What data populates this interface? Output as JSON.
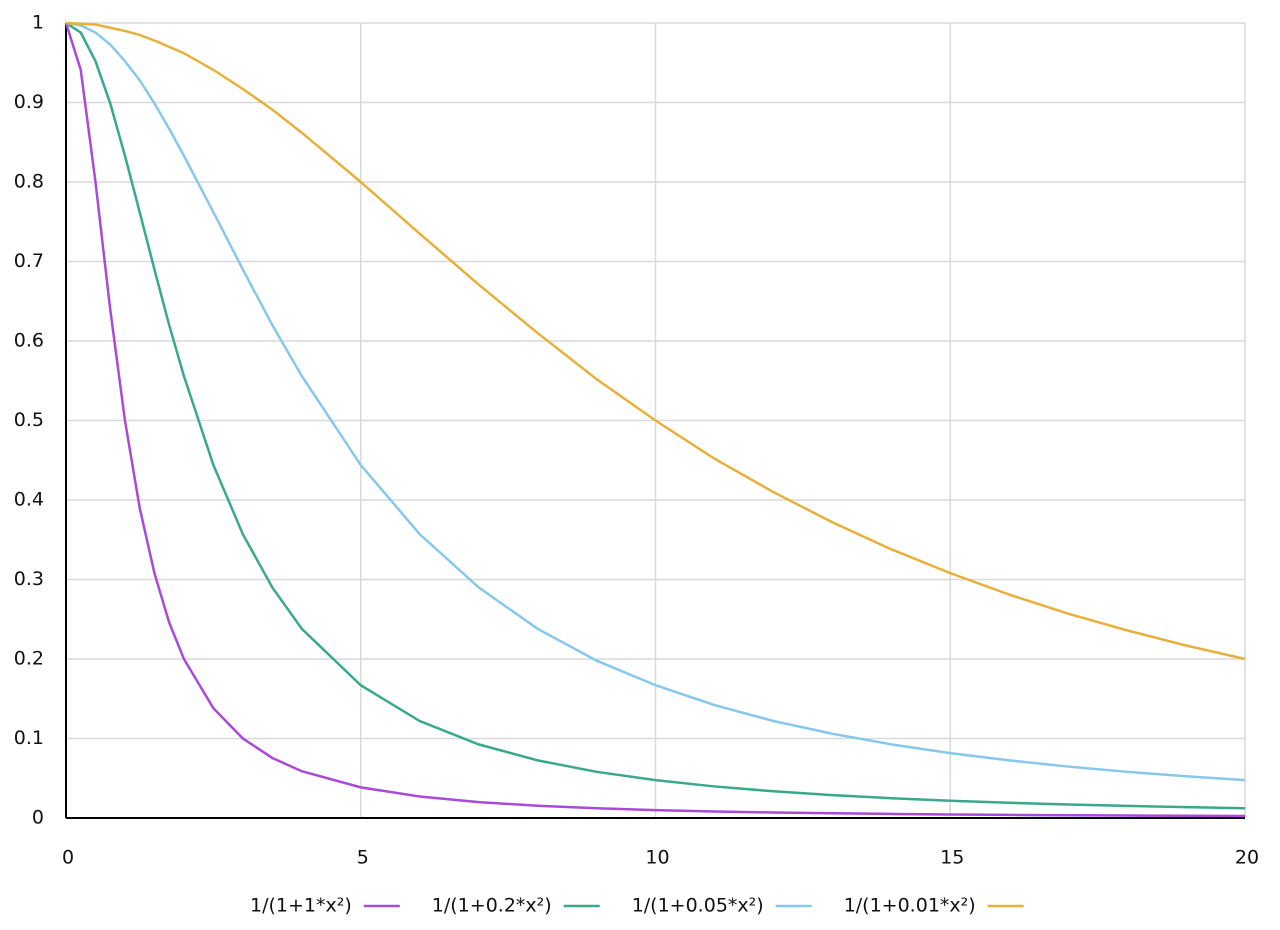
{
  "chart_data": {
    "type": "line",
    "x": [
      0,
      0.25,
      0.5,
      0.75,
      1,
      1.25,
      1.5,
      1.75,
      2,
      2.5,
      3,
      3.5,
      4,
      5,
      6,
      7,
      8,
      9,
      10,
      11,
      12,
      13,
      14,
      15,
      16,
      17,
      18,
      19,
      20
    ],
    "series": [
      {
        "name": "1/(1+1*x²)",
        "color": "#a94ad8",
        "values": [
          1,
          0.941,
          0.8,
          0.64,
          0.5,
          0.39,
          0.308,
          0.246,
          0.2,
          0.138,
          0.1,
          0.0755,
          0.0588,
          0.0385,
          0.027,
          0.02,
          0.0154,
          0.0122,
          0.0099,
          0.0082,
          0.0069,
          0.0059,
          0.0051,
          0.0044,
          0.0039,
          0.0034,
          0.0031,
          0.0028,
          0.0025
        ]
      },
      {
        "name": "1/(1+0.2*x²)",
        "color": "#3aa88a",
        "values": [
          1,
          0.988,
          0.952,
          0.899,
          0.833,
          0.762,
          0.69,
          0.62,
          0.556,
          0.444,
          0.357,
          0.29,
          0.238,
          0.167,
          0.122,
          0.0926,
          0.0725,
          0.0581,
          0.0476,
          0.0397,
          0.0336,
          0.0287,
          0.0249,
          0.0217,
          0.0192,
          0.017,
          0.0152,
          0.0137,
          0.0123
        ]
      },
      {
        "name": "1/(1+0.05*x²)",
        "color": "#86c8ec",
        "values": [
          1,
          0.997,
          0.988,
          0.973,
          0.952,
          0.928,
          0.899,
          0.867,
          0.833,
          0.762,
          0.69,
          0.62,
          0.556,
          0.444,
          0.357,
          0.29,
          0.238,
          0.198,
          0.167,
          0.142,
          0.122,
          0.106,
          0.0926,
          0.0816,
          0.0725,
          0.0647,
          0.0581,
          0.0525,
          0.0476
        ]
      },
      {
        "name": "1/(1+0.01*x²)",
        "color": "#e8b03a",
        "values": [
          1,
          0.999,
          0.998,
          0.994,
          0.99,
          0.985,
          0.978,
          0.97,
          0.962,
          0.941,
          0.917,
          0.891,
          0.862,
          0.8,
          0.735,
          0.671,
          0.61,
          0.552,
          0.5,
          0.452,
          0.41,
          0.372,
          0.338,
          0.308,
          0.281,
          0.257,
          0.236,
          0.217,
          0.2
        ]
      }
    ],
    "xlim": [
      0,
      20
    ],
    "xticks": [
      0,
      5,
      10,
      15,
      20
    ],
    "ylim": [
      0,
      1
    ],
    "yticks": [
      0,
      0.1,
      0.2,
      0.3,
      0.4,
      0.5,
      0.6,
      0.7,
      0.8,
      0.9,
      1
    ],
    "grid": true
  }
}
